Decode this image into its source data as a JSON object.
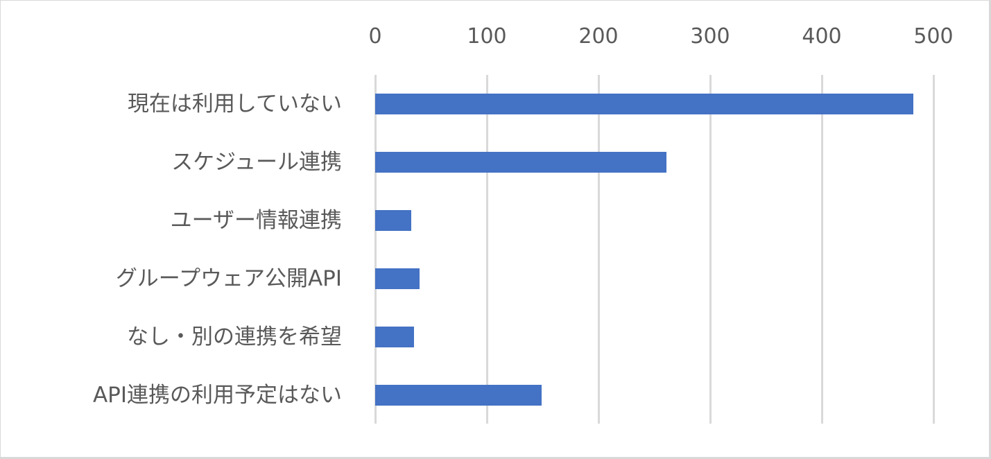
{
  "chart_data": {
    "type": "bar",
    "orientation": "horizontal",
    "title": "",
    "xlabel": "",
    "ylabel": "",
    "categories": [
      "現在は利用していない",
      "スケジュール連携",
      "ユーザー情報連携",
      "グループウェア公開API",
      "なし・別の連携を希望",
      "API連携の利用予定はない"
    ],
    "values": [
      482,
      261,
      32,
      40,
      35,
      149
    ],
    "xlim": [
      0,
      500
    ],
    "x_ticks": [
      "0",
      "100",
      "200",
      "300",
      "400",
      "500"
    ],
    "x_axis_position": "top",
    "grid": true,
    "legend": null,
    "bar_color": "#4472c4"
  },
  "colors": {
    "bar": "#4472c4",
    "gridline": "#d9d9d9",
    "text": "#595959",
    "border": "#d9d9d9"
  }
}
